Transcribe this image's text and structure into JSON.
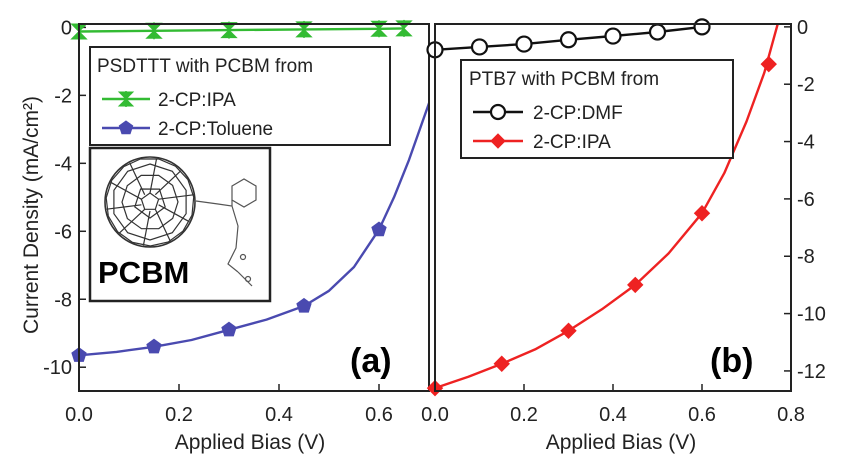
{
  "ylabel": "Current Density (mA/cm²)",
  "chart_data": [
    {
      "type": "line",
      "panel_label": "(a)",
      "xlabel": "Applied Bias (V)",
      "ylabel": "Current Density (mA/cm²)",
      "xlim": [
        0.0,
        0.65
      ],
      "ylim": [
        -10.7,
        0.1
      ],
      "xticks": [
        0.0,
        0.2,
        0.4,
        0.6
      ],
      "xtick_labels": [
        "0.0",
        "0.2",
        "0.4",
        "0.6"
      ],
      "yticks": [
        0,
        -2,
        -4,
        -6,
        -8,
        -10
      ],
      "ytick_labels": [
        "0",
        "-2",
        "-4",
        "-6",
        "-8",
        "-10"
      ],
      "legend_title": "PSDTTT with PCBM from",
      "legend_position": "top-left",
      "inset_label": "PCBM",
      "series": [
        {
          "name": "2-CP:IPA",
          "color": "#33bb33",
          "marker": "bowtie",
          "x": [
            0.0,
            0.15,
            0.3,
            0.45,
            0.6,
            0.65
          ],
          "y": [
            -0.12,
            -0.1,
            -0.08,
            -0.06,
            -0.04,
            -0.03
          ]
        },
        {
          "name": "2-CP:Toluene",
          "color": "#4a4ab0",
          "marker": "pentagon",
          "x": [
            0.0,
            0.15,
            0.3,
            0.45,
            0.6
          ],
          "y": [
            -9.65,
            -9.4,
            -8.9,
            -8.2,
            -5.95
          ],
          "curve_x": [
            0.0,
            0.075,
            0.15,
            0.225,
            0.3,
            0.375,
            0.45,
            0.5,
            0.55,
            0.6,
            0.63,
            0.66,
            0.69,
            0.72,
            0.75,
            0.77
          ],
          "curve_y": [
            -9.65,
            -9.55,
            -9.4,
            -9.2,
            -8.9,
            -8.6,
            -8.2,
            -7.75,
            -7.05,
            -5.95,
            -5.0,
            -3.9,
            -2.65,
            -1.4,
            -0.35,
            0.1
          ]
        }
      ]
    },
    {
      "type": "line",
      "panel_label": "(b)",
      "xlabel": "Applied Bias (V)",
      "xlim": [
        0.0,
        0.8
      ],
      "ylim": [
        -12.7,
        0.1
      ],
      "xticks": [
        0.0,
        0.2,
        0.4,
        0.6,
        0.8
      ],
      "xtick_labels": [
        "0.0",
        "0.2",
        "0.4",
        "0.6",
        "0.8"
      ],
      "yticks": [
        0,
        -2,
        -4,
        -6,
        -8,
        -10,
        -12
      ],
      "ytick_labels": [
        "0",
        "-2",
        "-4",
        "-6",
        "-8",
        "-10",
        "-12"
      ],
      "legend_title": "PTB7 with PCBM from",
      "legend_position": "top-center",
      "series": [
        {
          "name": "2-CP:DMF",
          "color": "#111111",
          "marker": "open-circle",
          "x": [
            0.0,
            0.1,
            0.2,
            0.3,
            0.4,
            0.5,
            0.6
          ],
          "y": [
            -0.8,
            -0.7,
            -0.6,
            -0.45,
            -0.32,
            -0.18,
            0.0
          ]
        },
        {
          "name": "2-CP:IPA",
          "color": "#ee2222",
          "marker": "diamond",
          "x": [
            0.0,
            0.15,
            0.3,
            0.45,
            0.6,
            0.75
          ],
          "y": [
            -12.6,
            -11.75,
            -10.6,
            -9.0,
            -6.5,
            -1.3
          ],
          "curve_x": [
            0.0,
            0.075,
            0.15,
            0.225,
            0.3,
            0.375,
            0.45,
            0.525,
            0.6,
            0.65,
            0.7,
            0.74,
            0.77
          ],
          "curve_y": [
            -12.6,
            -12.2,
            -11.75,
            -11.25,
            -10.6,
            -9.85,
            -9.0,
            -7.9,
            -6.5,
            -5.1,
            -3.3,
            -1.6,
            0.1
          ]
        }
      ]
    }
  ]
}
